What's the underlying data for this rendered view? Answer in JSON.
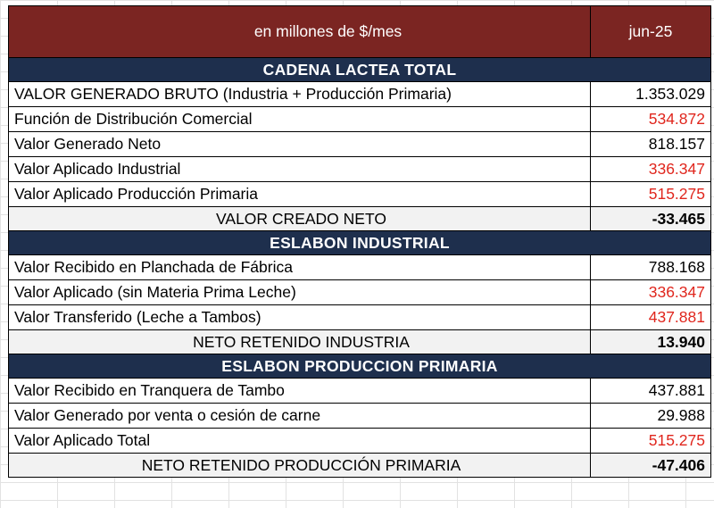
{
  "header": {
    "label": "en millones de $/mes",
    "period": "jun-25"
  },
  "colors": {
    "header_bg": "#7b2522",
    "section_bg": "#1e2f4d",
    "negative_text": "#e0261d",
    "total_bg": "#f2f2f2"
  },
  "sections": [
    {
      "title": "CADENA  LACTEA  TOTAL",
      "rows": [
        {
          "label": "VALOR GENERADO BRUTO (Industria + Producción Primaria)",
          "value": "1.353.029"
        },
        {
          "label": "Función de Distribución Comercial",
          "value": "534.872"
        },
        {
          "label": "Valor Generado Neto",
          "value": "818.157"
        },
        {
          "label": "Valor Aplicado Industrial",
          "value": "336.347"
        },
        {
          "label": "Valor Aplicado Producción Primaria",
          "value": "515.275"
        }
      ],
      "total": {
        "label": "VALOR CREADO NETO",
        "value": "-33.465"
      }
    },
    {
      "title": "ESLABON  INDUSTRIAL",
      "rows": [
        {
          "label": "Valor Recibido en Planchada de Fábrica",
          "value": "788.168"
        },
        {
          "label": "Valor Aplicado (sin Materia Prima Leche)",
          "value": "336.347"
        },
        {
          "label": "Valor Transferido (Leche a Tambos)",
          "value": "437.881"
        }
      ],
      "total": {
        "label": "NETO RETENIDO INDUSTRIA",
        "value": "13.940"
      }
    },
    {
      "title": "ESLABON  PRODUCCION  PRIMARIA",
      "rows": [
        {
          "label": "Valor Recibido en Tranquera de Tambo",
          "value": "437.881"
        },
        {
          "label": "Valor Generado por venta o cesión de carne",
          "value": "29.988"
        },
        {
          "label": "Valor Aplicado  Total",
          "value": "515.275"
        }
      ],
      "total": {
        "label": "NETO RETENIDO PRODUCCIÓN PRIMARIA",
        "value": "-47.406"
      }
    }
  ]
}
